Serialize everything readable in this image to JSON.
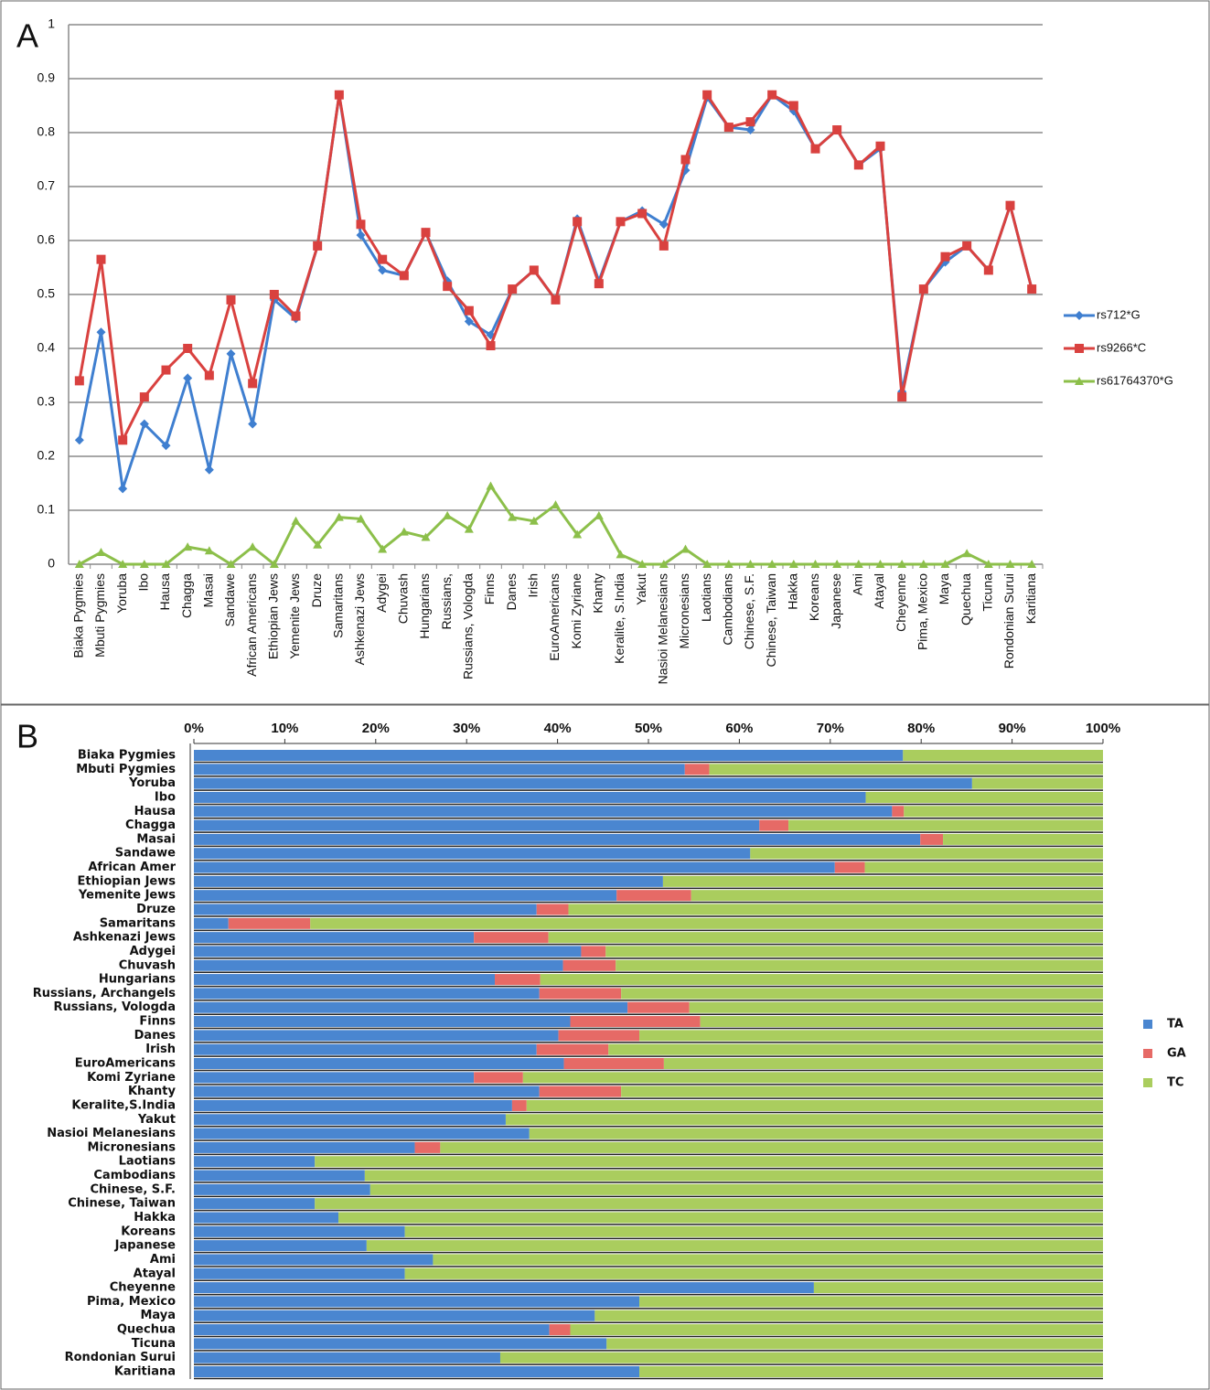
{
  "chart_data": [
    {
      "type": "line",
      "panel_label": "A",
      "categories": [
        "Biaka Pygmies",
        "Mbuti Pygmies",
        "Yoruba",
        "Ibo",
        "Hausa",
        "Chagga",
        "Masai",
        "Sandawe",
        "African Americans",
        "Ethiopian Jews",
        "Yemenite Jews",
        "Druze",
        "Samaritans",
        "Ashkenazi Jews",
        "Adygei",
        "Chuvash",
        "Hungarians",
        "Russians,",
        "Russians, Vologda",
        "Finns",
        "Danes",
        "Irish",
        "EuroAmericans",
        "Komi Zyriane",
        "Khanty",
        "Keralite, S.India",
        "Yakut",
        "Nasioi Melanesians",
        "Micronesians",
        "Laotians",
        "Cambodians",
        "Chinese, S.F.",
        "Chinese, Taiwan",
        "Hakka",
        "Koreans",
        "Japanese",
        "Ami",
        "Atayal",
        "Cheyenne",
        "Pima, Mexico",
        "Maya",
        "Quechua",
        "Ticuna",
        "Rondonian Surui",
        "Karitiana"
      ],
      "series": [
        {
          "name": "rs712*G",
          "color": "#3f7fd0",
          "marker": "diamond",
          "values": [
            0.23,
            0.43,
            0.14,
            0.26,
            0.22,
            0.345,
            0.175,
            0.39,
            0.26,
            0.49,
            0.455,
            0.59,
            0.87,
            0.61,
            0.545,
            0.535,
            0.615,
            0.525,
            0.45,
            0.425,
            0.51,
            0.545,
            0.49,
            0.64,
            0.525,
            0.635,
            0.655,
            0.63,
            0.73,
            0.865,
            0.81,
            0.805,
            0.87,
            0.84,
            0.77,
            0.805,
            0.74,
            0.77,
            0.32,
            0.51,
            0.56,
            0.59,
            0.545,
            0.665,
            0.51
          ]
        },
        {
          "name": "rs9266*C",
          "color": "#d9413f",
          "marker": "square",
          "values": [
            0.34,
            0.565,
            0.23,
            0.31,
            0.36,
            0.4,
            0.35,
            0.49,
            0.335,
            0.5,
            0.46,
            0.59,
            0.87,
            0.63,
            0.565,
            0.535,
            0.615,
            0.515,
            0.47,
            0.405,
            0.51,
            0.545,
            0.49,
            0.635,
            0.52,
            0.635,
            0.65,
            0.59,
            0.75,
            0.87,
            0.81,
            0.82,
            0.87,
            0.85,
            0.77,
            0.805,
            0.74,
            0.775,
            0.31,
            0.51,
            0.57,
            0.59,
            0.545,
            0.665,
            0.51
          ]
        },
        {
          "name": "rs61764370*G",
          "color": "#8cbf4a",
          "marker": "triangle",
          "values": [
            0,
            0.022,
            0,
            0,
            0,
            0.032,
            0.025,
            0,
            0.032,
            0,
            0.08,
            0.036,
            0.087,
            0.084,
            0.028,
            0.06,
            0.05,
            0.09,
            0.065,
            0.145,
            0.087,
            0.08,
            0.11,
            0.055,
            0.09,
            0.018,
            0,
            0,
            0.028,
            0,
            0,
            0,
            0,
            0,
            0,
            0,
            0,
            0,
            0,
            0,
            0,
            0.02,
            0,
            0,
            0
          ]
        }
      ],
      "ylim": [
        0,
        1
      ],
      "yticks": [
        0,
        0.1,
        0.2,
        0.3,
        0.4,
        0.5,
        0.6,
        0.7,
        0.8,
        0.9,
        1
      ],
      "grid": true,
      "legend": "right"
    },
    {
      "type": "bar",
      "panel_label": "B",
      "orientation": "horizontal",
      "stacked": true,
      "categories": [
        "Biaka Pygmies",
        "Mbuti Pygmies",
        "Yoruba",
        "Ibo",
        "Hausa",
        "Chagga",
        "Masai",
        "Sandawe",
        "African Amer",
        "Ethiopian Jews",
        "Yemenite Jews",
        "Druze",
        "Samaritans",
        "Ashkenazi Jews",
        "Adygei",
        "Chuvash",
        "Hungarians",
        "Russians, Archangels",
        "Russians, Vologda",
        "Finns",
        "Danes",
        "Irish",
        "EuroAmericans",
        "Komi Zyriane",
        "Khanty",
        "Keralite,S.India",
        "Yakut",
        "Nasioi Melanesians",
        "Micronesians",
        "Laotians",
        "Cambodians",
        "Chinese, S.F.",
        "Chinese, Taiwan",
        "Hakka",
        "Koreans",
        "Japanese",
        "Ami",
        "Atayal",
        "Cheyenne",
        "Pima, Mexico",
        "Maya",
        "Quechua",
        "Ticuna",
        "Rondonian Surui",
        "Karitiana"
      ],
      "series": [
        {
          "name": "TA",
          "color": "#4a86d0",
          "values": [
            78,
            54,
            85.6,
            73.9,
            76.8,
            62.2,
            79.9,
            61.2,
            70.5,
            51.6,
            46.5,
            37.7,
            3.8,
            30.8,
            42.6,
            40.6,
            33.1,
            38,
            47.7,
            41.4,
            40.1,
            37.7,
            40.7,
            30.8,
            38,
            35,
            34.3,
            36.9,
            24.3,
            13.3,
            18.8,
            19.4,
            13.3,
            15.9,
            23.2,
            19,
            26.3,
            23.2,
            68.2,
            49,
            44.1,
            39.1,
            45.4,
            33.7,
            49
          ]
        },
        {
          "name": "GA",
          "color": "#e66a66",
          "values": [
            0,
            2.7,
            0,
            0,
            1.3,
            3.2,
            2.5,
            0,
            3.3,
            0,
            8.2,
            3.5,
            9,
            8.2,
            2.7,
            5.8,
            5,
            9,
            6.8,
            14.3,
            8.9,
            7.9,
            11,
            5.4,
            9,
            1.6,
            0,
            0,
            2.8,
            0,
            0,
            0,
            0,
            0,
            0,
            0,
            0,
            0,
            0,
            0,
            0,
            2.3,
            0,
            0,
            0
          ]
        },
        {
          "name": "TC",
          "color": "#aacd5e",
          "values": [
            22,
            43.3,
            14.4,
            26.1,
            21.9,
            34.6,
            17.6,
            38.8,
            26.2,
            48.4,
            45.3,
            58.8,
            87.2,
            61,
            54.7,
            53.6,
            61.9,
            53,
            45.5,
            44.3,
            51,
            54.4,
            48.3,
            63.8,
            53,
            63.4,
            65.7,
            63.1,
            72.9,
            86.7,
            81.2,
            80.6,
            86.7,
            84.1,
            76.8,
            81,
            73.7,
            76.8,
            31.8,
            51,
            55.9,
            58.6,
            54.6,
            66.3,
            51
          ]
        }
      ],
      "xlim": [
        0,
        100
      ],
      "xticks": [
        {
          "value": 0,
          "label": "0%"
        },
        {
          "value": 10,
          "label": "10%"
        },
        {
          "value": 20,
          "label": "20%"
        },
        {
          "value": 30,
          "label": "30%"
        },
        {
          "value": 40,
          "label": "40%"
        },
        {
          "value": 50,
          "label": "50%"
        },
        {
          "value": 60,
          "label": "60%"
        },
        {
          "value": 70,
          "label": "70%"
        },
        {
          "value": 80,
          "label": "80%"
        },
        {
          "value": 90,
          "label": "90%"
        },
        {
          "value": 100,
          "label": "100%"
        }
      ],
      "grid": false,
      "legend": "right"
    }
  ]
}
